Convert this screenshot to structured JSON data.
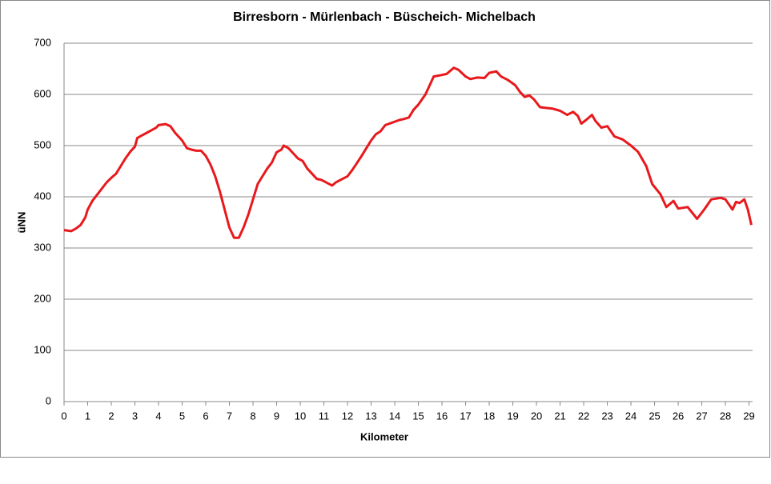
{
  "chart_data": {
    "type": "line",
    "title": "Birresborn  - Mürlenbach  - Büscheich- Michelbach",
    "x_label": "Kilometer",
    "y_label": "üNN",
    "x": [
      0,
      0.3,
      0.5,
      0.7,
      0.9,
      1.0,
      1.2,
      1.5,
      1.8,
      2.0,
      2.2,
      2.4,
      2.6,
      2.8,
      3.0,
      3.1,
      3.3,
      3.5,
      3.7,
      3.9,
      4.0,
      4.3,
      4.5,
      4.7,
      5.0,
      5.2,
      5.4,
      5.6,
      5.8,
      6.0,
      6.2,
      6.4,
      6.6,
      6.8,
      7.0,
      7.2,
      7.4,
      7.6,
      7.8,
      8.0,
      8.2,
      8.4,
      8.6,
      8.8,
      9.0,
      9.2,
      9.3,
      9.5,
      9.7,
      9.9,
      10.1,
      10.3,
      10.5,
      10.7,
      10.9,
      11.1,
      11.35,
      11.5,
      11.7,
      12.0,
      12.2,
      12.4,
      12.6,
      12.8,
      13.0,
      13.2,
      13.4,
      13.6,
      13.9,
      14.2,
      14.4,
      14.6,
      14.8,
      15.0,
      15.3,
      15.5,
      15.65,
      16.0,
      16.2,
      16.5,
      16.7,
      17.0,
      17.2,
      17.5,
      17.8,
      18.0,
      18.3,
      18.5,
      18.8,
      19.1,
      19.3,
      19.5,
      19.7,
      19.9,
      20.15,
      20.7,
      21.0,
      21.3,
      21.55,
      21.75,
      21.9,
      22.1,
      22.35,
      22.5,
      22.75,
      23.0,
      23.3,
      23.65,
      24.0,
      24.3,
      24.65,
      24.9,
      25.25,
      25.5,
      25.8,
      26.0,
      26.4,
      26.8,
      27.1,
      27.4,
      27.8,
      28.0,
      28.3,
      28.45,
      28.6,
      28.8,
      28.95,
      29.1
    ],
    "series": [
      {
        "name": "üNN",
        "color": "#e8191c",
        "values": [
          335,
          333,
          338,
          345,
          360,
          375,
          392,
          410,
          428,
          437,
          445,
          460,
          475,
          488,
          498,
          515,
          520,
          525,
          530,
          535,
          540,
          542,
          538,
          525,
          510,
          495,
          492,
          490,
          490,
          480,
          463,
          440,
          410,
          375,
          340,
          320,
          320,
          340,
          365,
          395,
          425,
          440,
          455,
          467,
          487,
          492,
          500,
          495,
          485,
          475,
          470,
          455,
          445,
          435,
          433,
          428,
          422,
          428,
          433,
          440,
          452,
          466,
          480,
          495,
          510,
          522,
          528,
          540,
          545,
          550,
          552,
          555,
          570,
          580,
          600,
          620,
          635,
          638,
          640,
          652,
          648,
          635,
          630,
          633,
          632,
          642,
          645,
          635,
          628,
          618,
          605,
          595,
          598,
          590,
          575,
          572,
          568,
          560,
          566,
          558,
          543,
          550,
          560,
          548,
          535,
          538,
          518,
          512,
          500,
          488,
          460,
          425,
          405,
          380,
          392,
          377,
          380,
          357,
          375,
          395,
          398,
          395,
          375,
          390,
          388,
          395,
          375,
          345
        ]
      }
    ],
    "xlim": [
      0,
      29.15
    ],
    "ylim": [
      0,
      700
    ],
    "xticks": [
      0,
      1,
      2,
      3,
      4,
      5,
      6,
      7,
      8,
      9,
      10,
      11,
      12,
      13,
      14,
      15,
      16,
      17,
      18,
      19,
      20,
      21,
      22,
      23,
      24,
      25,
      26,
      27,
      28,
      29
    ],
    "yticks": [
      0,
      100,
      200,
      300,
      400,
      500,
      600,
      700
    ],
    "grid": true
  }
}
